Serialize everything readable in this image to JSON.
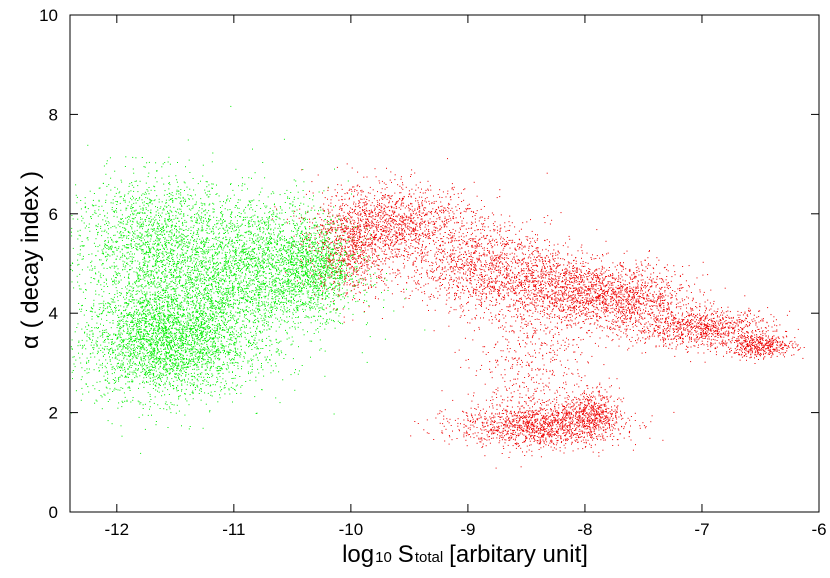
{
  "chart_data": {
    "type": "scatter",
    "title": "",
    "xlabel": {
      "prefix": "log",
      "prefix_subscript": "10",
      "symbol": "S",
      "symbol_subscript": "total",
      "suffix": "[arbitary unit]"
    },
    "ylabel": "α ( decay index )",
    "xlim": [
      -12.4,
      -6
    ],
    "ylim": [
      0,
      10
    ],
    "xticks": [
      "-12",
      "-11",
      "-10",
      "-9",
      "-8",
      "-7",
      "-6"
    ],
    "yticks": [
      "0",
      "2",
      "4",
      "6",
      "8",
      "10"
    ],
    "grid": false,
    "legend": "none",
    "series": [
      {
        "color": "#00ee00",
        "approx_points": 9000,
        "clusters": [
          {
            "x": -11.6,
            "y": 3.4,
            "sx": 0.35,
            "sy": 0.55,
            "w": 0.3
          },
          {
            "x": -11.3,
            "y": 4.4,
            "sx": 0.45,
            "sy": 0.8,
            "w": 0.25
          },
          {
            "x": -11.7,
            "y": 5.6,
            "sx": 0.35,
            "sy": 0.6,
            "w": 0.15
          },
          {
            "x": -10.7,
            "y": 5.0,
            "sx": 0.35,
            "sy": 0.7,
            "w": 0.2
          },
          {
            "x": -10.3,
            "y": 4.9,
            "sx": 0.18,
            "sy": 0.45,
            "w": 0.1
          }
        ]
      },
      {
        "color": "#ee0000",
        "approx_points": 9000,
        "clusters": [
          {
            "x": -9.6,
            "y": 5.8,
            "sx": 0.35,
            "sy": 0.4,
            "w": 0.15
          },
          {
            "x": -10.0,
            "y": 5.3,
            "sx": 0.18,
            "sy": 0.5,
            "w": 0.08
          },
          {
            "x": -8.9,
            "y": 4.9,
            "sx": 0.3,
            "sy": 0.45,
            "w": 0.12
          },
          {
            "x": -8.3,
            "y": 4.6,
            "sx": 0.25,
            "sy": 0.4,
            "w": 0.1
          },
          {
            "x": -7.7,
            "y": 4.3,
            "sx": 0.3,
            "sy": 0.35,
            "w": 0.15
          },
          {
            "x": -7.0,
            "y": 3.7,
            "sx": 0.3,
            "sy": 0.2,
            "w": 0.1
          },
          {
            "x": -6.5,
            "y": 3.35,
            "sx": 0.15,
            "sy": 0.12,
            "w": 0.05
          },
          {
            "x": -8.4,
            "y": 1.75,
            "sx": 0.35,
            "sy": 0.22,
            "w": 0.15
          },
          {
            "x": -7.95,
            "y": 2.0,
            "sx": 0.12,
            "sy": 0.25,
            "w": 0.05
          },
          {
            "x": -8.5,
            "y": 3.0,
            "sx": 0.25,
            "sy": 0.7,
            "w": 0.05
          }
        ]
      }
    ]
  }
}
